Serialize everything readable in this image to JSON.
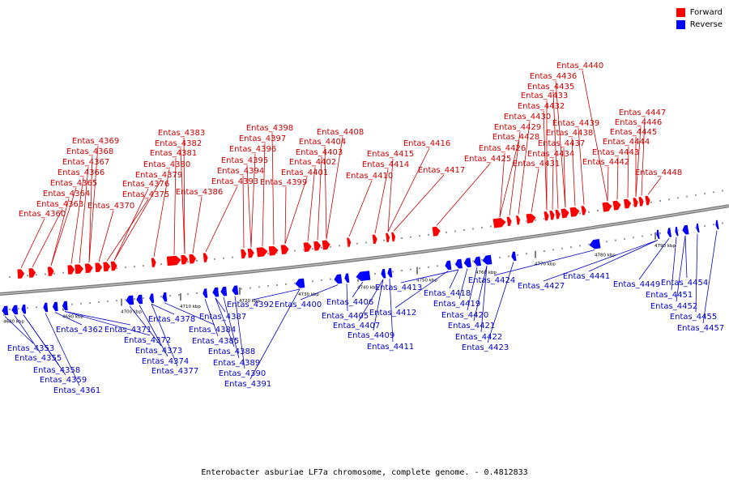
{
  "legend": {
    "forward": {
      "label": "Forward",
      "color": "#ff0000"
    },
    "reverse": {
      "label": "Reverse",
      "color": "#0000ff"
    }
  },
  "caption": "Enterobacter asburiae LF7a chromosome, complete genome. - 0.4812833",
  "axis": {
    "ticks": [
      "4680 kbp",
      "4690 kbp",
      "4700 kbp",
      "4710 kbp",
      "4720 kbp",
      "4730 kbp",
      "4740 kbp",
      "4750 kbp",
      "4760 kbp",
      "4770 kbp",
      "4780 kbp",
      "4790 kbp"
    ]
  },
  "genes": {
    "forward": [
      "Entas_4360",
      "Entas_4363",
      "Entas_4364",
      "Entas_4365",
      "Entas_4366",
      "Entas_4367",
      "Entas_4368",
      "Entas_4369",
      "Entas_4370",
      "Entas_4375",
      "Entas_4376",
      "Entas_4379",
      "Entas_4380",
      "Entas_4381",
      "Entas_4382",
      "Entas_4383",
      "Entas_4386",
      "Entas_4393",
      "Entas_4394",
      "Entas_4395",
      "Entas_4396",
      "Entas_4397",
      "Entas_4398",
      "Entas_4399",
      "Entas_4401",
      "Entas_4402",
      "Entas_4403",
      "Entas_4404",
      "Entas_4408",
      "Entas_4410",
      "Entas_4414",
      "Entas_4415",
      "Entas_4416",
      "Entas_4417",
      "Entas_4425",
      "Entas_4426",
      "Entas_4428",
      "Entas_4429",
      "Entas_4430",
      "Entas_4431",
      "Entas_4432",
      "Entas_4433",
      "Entas_4434",
      "Entas_4435",
      "Entas_4436",
      "Entas_4437",
      "Entas_4438",
      "Entas_4439",
      "Entas_4440",
      "Entas_4442",
      "Entas_4443",
      "Entas_4444",
      "Entas_4445",
      "Entas_4446",
      "Entas_4447",
      "Entas_4448"
    ],
    "reverse": [
      "Entas_4353",
      "Entas_4355",
      "Entas_4358",
      "Entas_4359",
      "Entas_4361",
      "Entas_4362",
      "Entas_4371",
      "Entas_4372",
      "Entas_4373",
      "Entas_4374",
      "Entas_4377",
      "Entas_4378",
      "Entas_4384",
      "Entas_4385",
      "Entas_4387",
      "Entas_4388",
      "Entas_4389",
      "Entas_4390",
      "Entas_4391",
      "Entas_4392",
      "Entas_4400",
      "Entas_4405",
      "Entas_4406",
      "Entas_4407",
      "Entas_4409",
      "Entas_4411",
      "Entas_4412",
      "Entas_4413",
      "Entas_4418",
      "Entas_4419",
      "Entas_4420",
      "Entas_4421",
      "Entas_4422",
      "Entas_4423",
      "Entas_4424",
      "Entas_4427",
      "Entas_4441",
      "Entas_4449",
      "Entas_4451",
      "Entas_4452",
      "Entas_4454",
      "Entas_4455",
      "Entas_4457"
    ]
  }
}
